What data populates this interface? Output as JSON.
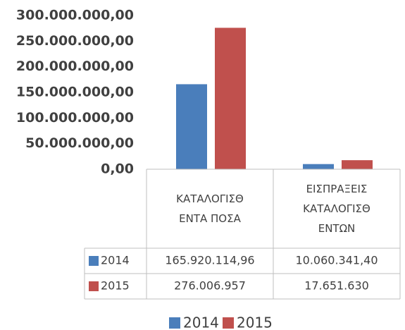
{
  "chart_data": {
    "type": "bar",
    "categories": [
      "ΚΑΤΑΛΟΓΙΣΘ\nΕΝΤΑ ΠΟΣΑ",
      "ΕΙΣΠΡΑΞΕΙΣ\nΚΑΤΑΛΟΓΙΣΘ\nΕΝΤΩΝ"
    ],
    "series": [
      {
        "name": "2014",
        "color": "#4a7ebb",
        "values": [
          165920114.96,
          10060341.4
        ],
        "value_labels": [
          "165.920.114,96",
          "10.060.341,40"
        ]
      },
      {
        "name": "2015",
        "color": "#c0504d",
        "values": [
          276006957,
          17651630
        ],
        "value_labels": [
          "276.006.957",
          "17.651.630"
        ]
      }
    ],
    "ylim": [
      0,
      300000000
    ],
    "yticks": [
      {
        "value": 0,
        "label": "0,00"
      },
      {
        "value": 50000000,
        "label": "50.000.000,00"
      },
      {
        "value": 100000000,
        "label": "100.000.000,00"
      },
      {
        "value": 150000000,
        "label": "150.000.000,00"
      },
      {
        "value": 200000000,
        "label": "200.000.000,00"
      },
      {
        "value": 250000000,
        "label": "250.000.000,00"
      },
      {
        "value": 300000000,
        "label": "300.000.000,00"
      }
    ],
    "data_table": true,
    "legend": "bottom"
  }
}
